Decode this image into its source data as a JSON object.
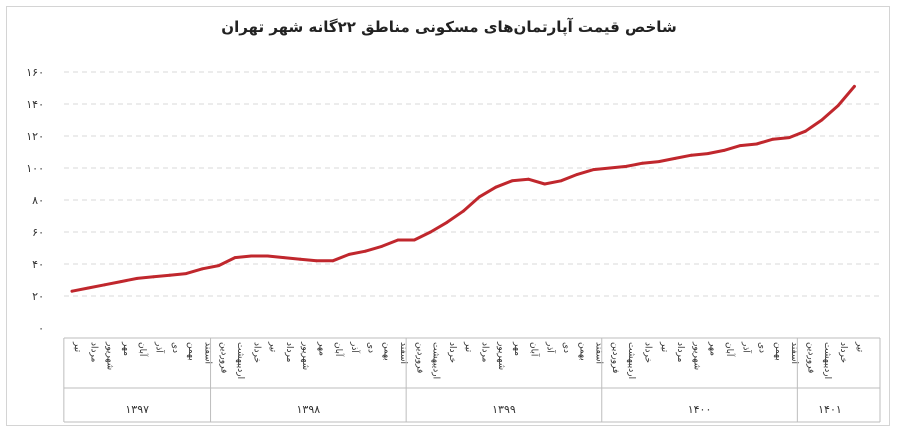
{
  "chart_data": {
    "type": "line",
    "title": "شاخص قیمت آپارتمان‌های مسکونی مناطق ۲۲گانه شهر تهران",
    "xlabel": "",
    "ylabel": "",
    "ylim": [
      0,
      160
    ],
    "yticks": [
      "۰",
      "۲۰",
      "۴۰",
      "۶۰",
      "۸۰",
      "۱۰۰",
      "۱۲۰",
      "۱۴۰",
      "۱۶۰"
    ],
    "ytick_values": [
      0,
      20,
      40,
      60,
      80,
      100,
      120,
      140,
      160
    ],
    "grid": true,
    "color": "#c0272d",
    "categories": [
      "تیر",
      "مرداد",
      "شهریور",
      "مهر",
      "آبان",
      "آذر",
      "دی",
      "بهمن",
      "اسفند",
      "فروردین",
      "اردیبهشت",
      "خرداد",
      "تیر",
      "مرداد",
      "شهریور",
      "مهر",
      "آبان",
      "آذر",
      "دی",
      "بهمن",
      "اسفند",
      "فروردین",
      "اردیبهشت",
      "خرداد",
      "تیر",
      "مرداد",
      "شهریور",
      "مهر",
      "آبان",
      "آذر",
      "دی",
      "بهمن",
      "اسفند",
      "فروردین",
      "اردیبهشت",
      "خرداد",
      "تیر",
      "مرداد",
      "شهریور",
      "مهر",
      "آبان",
      "آذر",
      "دی",
      "بهمن",
      "اسفند",
      "فروردین",
      "اردیبهشت",
      "خرداد",
      "تیر"
    ],
    "groups": [
      {
        "label": "۱۳۹۷",
        "count": 9
      },
      {
        "label": "۱۳۹۸",
        "count": 12
      },
      {
        "label": "۱۳۹۹",
        "count": 12
      },
      {
        "label": "۱۴۰۰",
        "count": 12
      },
      {
        "label": "۱۴۰۱",
        "count": 4
      }
    ],
    "series": [
      {
        "values": [
          23,
          25,
          27,
          29,
          31,
          32,
          33,
          34,
          37,
          39,
          44,
          45,
          45,
          44,
          43,
          42,
          42,
          46,
          48,
          51,
          55,
          55,
          60,
          66,
          73,
          82,
          88,
          92,
          93,
          90,
          92,
          96,
          99,
          100,
          101,
          103,
          104,
          106,
          108,
          109,
          111,
          114,
          115,
          118,
          119,
          123,
          130,
          139,
          151
        ]
      }
    ]
  }
}
